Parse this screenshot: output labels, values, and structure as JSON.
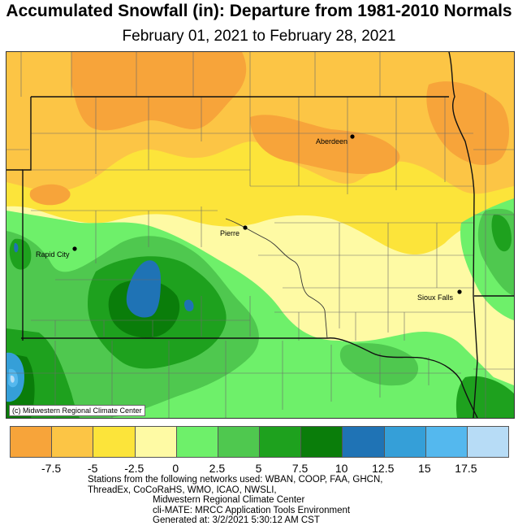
{
  "header": {
    "title": "Accumulated Snowfall (in): Departure from 1981-2010 Normals",
    "subtitle": "February 01, 2021 to February 28, 2021"
  },
  "map": {
    "credit": "(c) Midwestern Regional Climate Center",
    "cities": [
      {
        "name": "Aberdeen"
      },
      {
        "name": "Pierre"
      },
      {
        "name": "Rapid City"
      },
      {
        "name": "Sioux Falls"
      }
    ]
  },
  "legend": {
    "colors": [
      "#f7a43a",
      "#fcc545",
      "#fce43a",
      "#fefaa4",
      "#6ef06a",
      "#4fc84f",
      "#1ea11e",
      "#0a7d0a",
      "#1f73b5",
      "#359fd8",
      "#54b8ee",
      "#b7dcf6"
    ],
    "tick_labels": [
      "-7.5",
      "-5",
      "-2.5",
      "0",
      "2.5",
      "5",
      "7.5",
      "10",
      "12.5",
      "15",
      "17.5"
    ]
  },
  "footer": {
    "line1": "Stations from the following networks used: WBAN, COOP, FAA, GHCN,",
    "line2": "ThreadEx, CoCoRaHS, WMO, ICAO, NWSLI,",
    "line3": "Midwestern Regional Climate Center",
    "line4": "cli-MATE: MRCC Application Tools Environment",
    "line5": "Generated at: 3/2/2021 5:30:12 AM CST"
  }
}
